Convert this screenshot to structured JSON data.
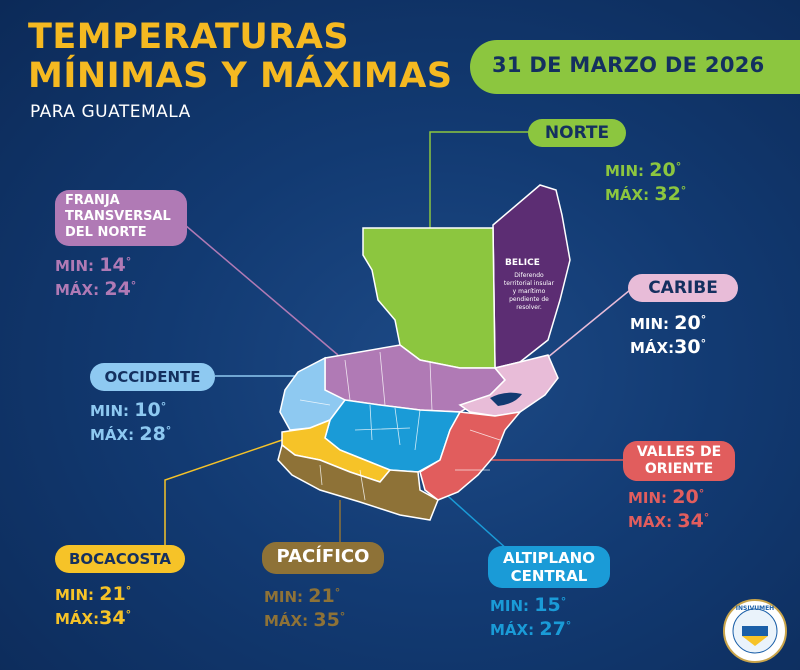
{
  "header": {
    "title_line1": "TEMPERATURAS",
    "title_line2": "MÍNIMAS Y MÁXIMAS",
    "subtitle": "PARA GUATEMALA",
    "date": "31 DE MARZO DE 2026"
  },
  "labels": {
    "min": "MIN:",
    "max": "MÁX:"
  },
  "regions": {
    "norte": {
      "name": "NORTE",
      "min": "20",
      "max": "32",
      "color": "#8cc63f"
    },
    "franja": {
      "name_lines": [
        "FRANJA",
        "TRANSVERSAL",
        "DEL NORTE"
      ],
      "min": "14",
      "max": "24",
      "color": "#b07ab5"
    },
    "caribe": {
      "name": "CARIBE",
      "min": "20",
      "max": "30",
      "color": "#e8bcd8"
    },
    "occidente": {
      "name": "OCCIDENTE",
      "min": "10",
      "max": "28",
      "color": "#8ec9f1"
    },
    "valles": {
      "name_lines": [
        "VALLES DE",
        "ORIENTE"
      ],
      "min": "20",
      "max": "34",
      "color": "#e15d5d"
    },
    "bocacosta": {
      "name": "BOCACOSTA",
      "min": "21",
      "max": "34",
      "color": "#f6c328"
    },
    "pacifico": {
      "name": "PACÍFICO",
      "min": "21",
      "max": "35",
      "color": "#8e7237"
    },
    "altiplano": {
      "name_lines": [
        "ALTIPLANO",
        "CENTRAL"
      ],
      "min": "15",
      "max": "27",
      "color": "#1a9bd7"
    }
  },
  "belice": {
    "title": "BELICE",
    "note": "Diferendo territorial insular y marítimo pendiente de resolver.",
    "color": "#5c2d73"
  },
  "logo": {
    "text": "INSIVUMEH"
  },
  "degree": "°"
}
